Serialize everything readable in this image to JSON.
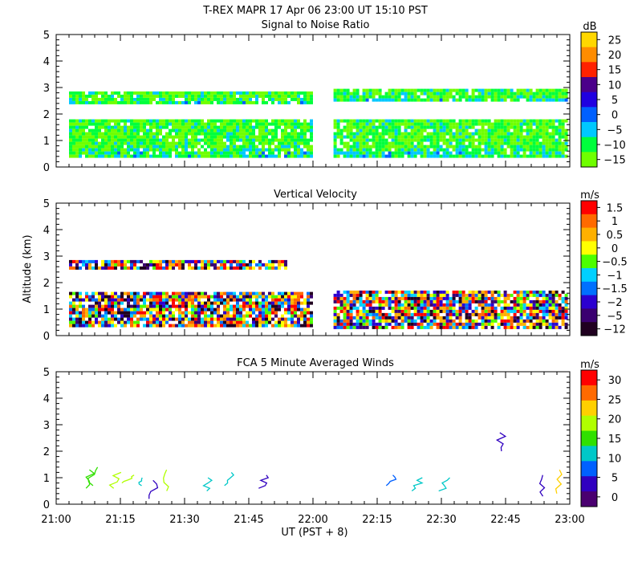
{
  "title": "T-REX  MAPR 17 Apr 06  23:00 UT  15:10  PST",
  "x_axis": {
    "label": "UT  (PST + 8)",
    "ticks": [
      "21:00",
      "21:15",
      "21:30",
      "21:45",
      "22:00",
      "22:15",
      "22:30",
      "22:45",
      "23:00"
    ],
    "range_hours": [
      21,
      23
    ]
  },
  "y_axis": {
    "label": "Altitude  (km)",
    "ticks": [
      "0",
      "1",
      "2",
      "3",
      "4",
      "5"
    ],
    "range_km": [
      0,
      5
    ]
  },
  "colorscale": [
    "#6fff00",
    "#00ff3c",
    "#00c8ff",
    "#0060ff",
    "#2000e0",
    "#4b008a",
    "#ff2200",
    "#ff8c00",
    "#ffd700"
  ],
  "chart_data": [
    {
      "type": "heatmap",
      "title": "Signal to Noise Ratio",
      "unit": "dB",
      "xlabel": "UT  (PST + 8)",
      "ylabel": "",
      "xlim": [
        21.0,
        23.0
      ],
      "ylim": [
        0,
        5
      ],
      "data_gap_hours": [
        21.99,
        22.08
      ],
      "colorbar": {
        "labels": [
          "25",
          "20",
          "15",
          "10",
          "5",
          "0",
          "−5",
          "−10",
          "−15"
        ],
        "colors": [
          "#ffd700",
          "#ff8c00",
          "#ff2200",
          "#4b008a",
          "#2000e0",
          "#0060ff",
          "#00c8ff",
          "#00ff3c",
          "#6fff00"
        ]
      },
      "bands": [
        {
          "start_hour": 21.05,
          "end_hour": 21.99,
          "alt_bottom_km": 0.35,
          "alt_top_km": 1.8,
          "dominant": "−10"
        },
        {
          "start_hour": 21.05,
          "end_hour": 21.99,
          "alt_bottom_km": 2.45,
          "alt_top_km": 2.85,
          "dominant": "−10"
        },
        {
          "start_hour": 22.08,
          "end_hour": 22.99,
          "alt_bottom_km": 0.35,
          "alt_top_km": 1.8,
          "dominant": "−10"
        },
        {
          "start_hour": 22.08,
          "end_hour": 22.99,
          "alt_bottom_km": 2.55,
          "alt_top_km": 2.95,
          "dominant": "−10"
        }
      ]
    },
    {
      "type": "heatmap",
      "title": "Vertical Velocity",
      "unit": "m/s",
      "xlabel": "UT  (PST + 8)",
      "ylabel": "Altitude  (km)",
      "xlim": [
        21.0,
        23.0
      ],
      "ylim": [
        0,
        5
      ],
      "data_gap_hours": [
        21.99,
        22.08
      ],
      "colorbar": {
        "labels": [
          "1.5",
          "1",
          "0.5",
          "0",
          "−0.5",
          "−1",
          "−1.5",
          "−2",
          "−5",
          "−12"
        ],
        "colors": [
          "#ff0000",
          "#ff6a00",
          "#ffb000",
          "#ffff00",
          "#4cff00",
          "#00d0ff",
          "#0070ff",
          "#2b00d0",
          "#3a0070",
          "#200020"
        ]
      },
      "bands": [
        {
          "start_hour": 21.05,
          "end_hour": 21.99,
          "alt_bottom_km": 0.35,
          "alt_top_km": 1.65
        },
        {
          "start_hour": 21.05,
          "end_hour": 21.9,
          "alt_bottom_km": 2.55,
          "alt_top_km": 2.85
        },
        {
          "start_hour": 22.08,
          "end_hour": 22.99,
          "alt_bottom_km": 0.35,
          "alt_top_km": 1.7
        }
      ]
    },
    {
      "type": "scatter",
      "title": "FCA 5 Minute Averaged Winds",
      "unit": "m/s",
      "xlabel": "UT  (PST + 8)",
      "ylabel": "",
      "xlim": [
        21.0,
        23.0
      ],
      "ylim": [
        0,
        5
      ],
      "colorbar": {
        "labels": [
          "30",
          "25",
          "20",
          "15",
          "10",
          "5",
          "0"
        ],
        "colors": [
          "#ff0000",
          "#ff6a00",
          "#ffd000",
          "#b0ff00",
          "#30e000",
          "#00c8c8",
          "#0060ff",
          "#3000c0",
          "#4a0070"
        ]
      },
      "barbs": [
        {
          "time_hour": 21.12,
          "alt_km": [
            0.6,
            1.3
          ],
          "speed_ms": 14
        },
        {
          "time_hour": 21.13,
          "alt_km": [
            0.7,
            1.4
          ],
          "speed_ms": 15
        },
        {
          "time_hour": 21.22,
          "alt_km": [
            0.6,
            1.2
          ],
          "speed_ms": 17
        },
        {
          "time_hour": 21.27,
          "alt_km": [
            0.8,
            1.1
          ],
          "speed_ms": 18
        },
        {
          "time_hour": 21.33,
          "alt_km": [
            0.7,
            1.0
          ],
          "speed_ms": 12
        },
        {
          "time_hour": 21.37,
          "alt_km": [
            0.2,
            0.9
          ],
          "speed_ms": 4
        },
        {
          "time_hour": 21.42,
          "alt_km": [
            0.5,
            1.3
          ],
          "speed_ms": 19
        },
        {
          "time_hour": 21.58,
          "alt_km": [
            0.5,
            1.0
          ],
          "speed_ms": 11
        },
        {
          "time_hour": 21.67,
          "alt_km": [
            0.7,
            1.2
          ],
          "speed_ms": 10
        },
        {
          "time_hour": 21.8,
          "alt_km": [
            0.6,
            1.1
          ],
          "speed_ms": 5
        },
        {
          "time_hour": 22.3,
          "alt_km": [
            0.7,
            1.1
          ],
          "speed_ms": 6
        },
        {
          "time_hour": 22.4,
          "alt_km": [
            0.5,
            1.0
          ],
          "speed_ms": 10
        },
        {
          "time_hour": 22.5,
          "alt_km": [
            0.5,
            1.0
          ],
          "speed_ms": 12
        },
        {
          "time_hour": 22.72,
          "alt_km": [
            2.0,
            2.7
          ],
          "speed_ms": 5
        },
        {
          "time_hour": 22.88,
          "alt_km": [
            0.3,
            1.1
          ],
          "speed_ms": 5
        },
        {
          "time_hour": 22.95,
          "alt_km": [
            0.4,
            1.3
          ],
          "speed_ms": 21
        }
      ]
    }
  ]
}
